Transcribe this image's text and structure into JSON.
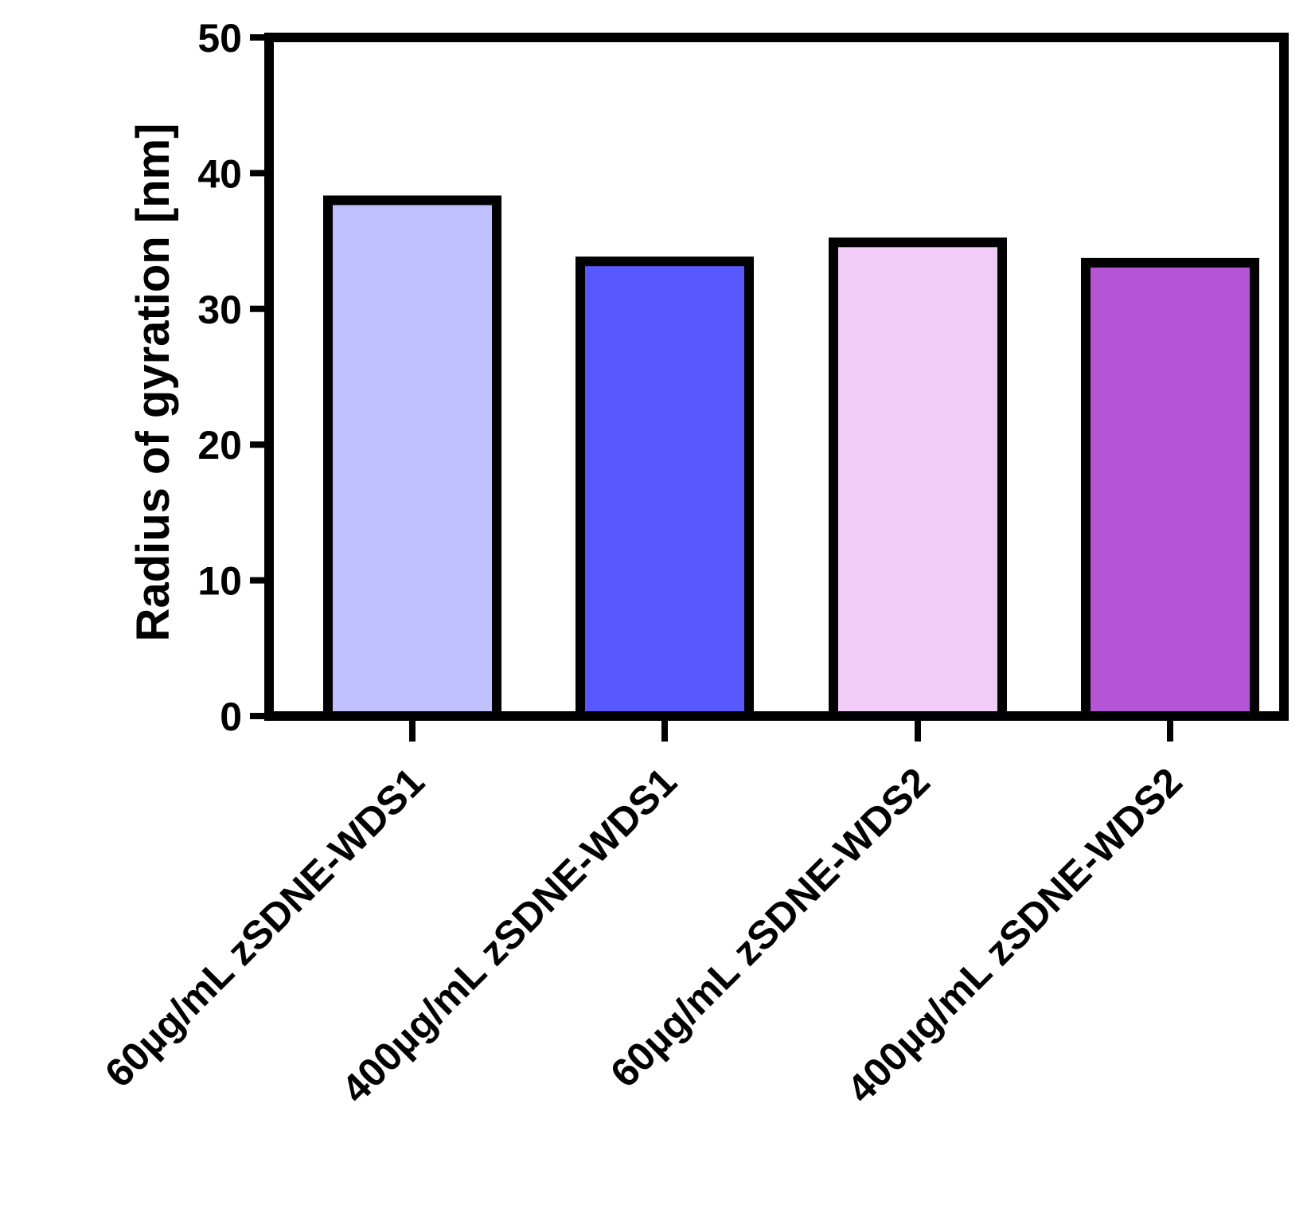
{
  "chart_data": {
    "type": "bar",
    "title": "",
    "xlabel": "",
    "ylabel": "Radius of gyration [nm]",
    "ylim": [
      0,
      50
    ],
    "yticks": [
      0,
      10,
      20,
      30,
      40,
      50
    ],
    "grid": false,
    "categories": [
      "60µg/mL zSDNE-WDS1",
      "400µg/mL zSDNE-WDS1",
      "60µg/mL zSDNE-WDS2",
      "400µg/mL zSDNE-WDS2"
    ],
    "values": [
      38.0,
      33.5,
      34.9,
      33.4
    ],
    "colors": [
      "#c0c0ff",
      "#5858fc",
      "#f0ccf6",
      "#b455d6"
    ],
    "bar_edge_color": "#000000"
  }
}
